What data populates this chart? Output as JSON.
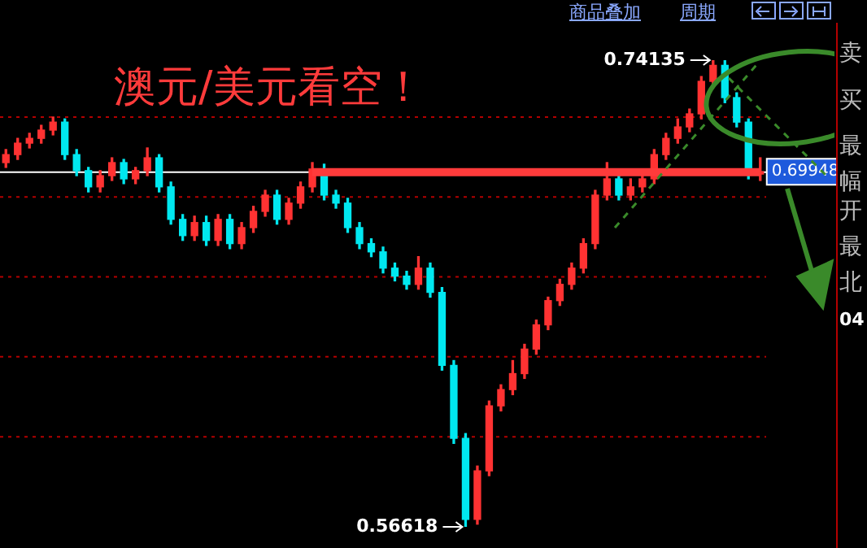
{
  "chart_data": {
    "type": "candlestick",
    "title": "澳元/美元看空！",
    "categories": [
      null,
      null,
      null,
      null,
      null,
      null,
      null,
      null,
      null,
      null,
      null,
      null,
      null,
      null,
      null,
      null,
      null,
      null,
      null,
      null,
      null,
      null,
      null,
      null,
      null,
      null,
      null,
      null,
      null,
      null,
      null,
      null,
      null,
      null,
      null,
      null,
      null,
      null,
      null,
      null,
      null,
      null,
      null,
      null,
      null,
      null,
      null,
      null,
      null,
      null,
      null,
      null,
      null,
      null,
      null,
      null,
      null,
      null,
      null,
      null,
      null,
      null,
      null,
      null,
      null
    ],
    "ohlc": [
      [
        0.7029,
        0.7078,
        0.7011,
        0.7059
      ],
      [
        0.7059,
        0.712,
        0.7041,
        0.7102
      ],
      [
        0.7102,
        0.7139,
        0.7084,
        0.712
      ],
      [
        0.712,
        0.7169,
        0.7102,
        0.7151
      ],
      [
        0.7151,
        0.72,
        0.7133,
        0.7181
      ],
      [
        0.7181,
        0.7193,
        0.7041,
        0.7059
      ],
      [
        0.7059,
        0.7078,
        0.698,
        0.6999
      ],
      [
        0.6999,
        0.7011,
        0.6919,
        0.6938
      ],
      [
        0.6938,
        0.6999,
        0.6919,
        0.698
      ],
      [
        0.698,
        0.7047,
        0.6962,
        0.7029
      ],
      [
        0.7029,
        0.7041,
        0.695,
        0.6968
      ],
      [
        0.6968,
        0.7011,
        0.695,
        0.6999
      ],
      [
        0.6999,
        0.7084,
        0.698,
        0.7047
      ],
      [
        0.7047,
        0.7059,
        0.6919,
        0.6938
      ],
      [
        0.6938,
        0.6956,
        0.6798,
        0.6816
      ],
      [
        0.6816,
        0.6834,
        0.6737,
        0.6755
      ],
      [
        0.6755,
        0.6828,
        0.6737,
        0.6804
      ],
      [
        0.6804,
        0.6828,
        0.6718,
        0.6737
      ],
      [
        0.6737,
        0.6834,
        0.6718,
        0.6816
      ],
      [
        0.6816,
        0.6834,
        0.6706,
        0.6725
      ],
      [
        0.6725,
        0.6804,
        0.6706,
        0.6785
      ],
      [
        0.6785,
        0.6865,
        0.6767,
        0.6846
      ],
      [
        0.6846,
        0.6925,
        0.6828,
        0.6907
      ],
      [
        0.6907,
        0.6925,
        0.6798,
        0.6816
      ],
      [
        0.6816,
        0.6895,
        0.6798,
        0.6877
      ],
      [
        0.6877,
        0.6956,
        0.6858,
        0.6938
      ],
      [
        0.6938,
        0.7029,
        0.6919,
        0.7005
      ],
      [
        0.7005,
        0.7023,
        0.6889,
        0.6907
      ],
      [
        0.6907,
        0.6925,
        0.6858,
        0.6877
      ],
      [
        0.6877,
        0.6895,
        0.6767,
        0.6785
      ],
      [
        0.6785,
        0.6804,
        0.6706,
        0.6725
      ],
      [
        0.6725,
        0.6743,
        0.6676,
        0.6694
      ],
      [
        0.6694,
        0.6712,
        0.6615,
        0.6633
      ],
      [
        0.6633,
        0.6652,
        0.6585,
        0.6603
      ],
      [
        0.6603,
        0.6621,
        0.6554,
        0.6572
      ],
      [
        0.6572,
        0.6676,
        0.6554,
        0.6633
      ],
      [
        0.6633,
        0.6652,
        0.6524,
        0.6542
      ],
      [
        0.6542,
        0.656,
        0.625,
        0.6268
      ],
      [
        0.6268,
        0.6286,
        0.5975,
        0.5994
      ],
      [
        0.5994,
        0.6012,
        0.56618,
        0.569
      ],
      [
        0.569,
        0.589,
        0.5672,
        0.5872
      ],
      [
        0.5872,
        0.6134,
        0.5854,
        0.6116
      ],
      [
        0.6116,
        0.6195,
        0.6097,
        0.6177
      ],
      [
        0.6177,
        0.6286,
        0.6158,
        0.6237
      ],
      [
        0.6237,
        0.6347,
        0.6219,
        0.6329
      ],
      [
        0.6329,
        0.6438,
        0.631,
        0.642
      ],
      [
        0.642,
        0.6524,
        0.6402,
        0.6511
      ],
      [
        0.6511,
        0.6591,
        0.6493,
        0.6572
      ],
      [
        0.6572,
        0.6652,
        0.6554,
        0.6633
      ],
      [
        0.6633,
        0.6743,
        0.6615,
        0.6725
      ],
      [
        0.6725,
        0.6925,
        0.6706,
        0.6907
      ],
      [
        0.6907,
        0.7029,
        0.6889,
        0.6968
      ],
      [
        0.6968,
        0.6986,
        0.6889,
        0.6907
      ],
      [
        0.6907,
        0.6968,
        0.6889,
        0.6938
      ],
      [
        0.6938,
        0.7005,
        0.6919,
        0.6968
      ],
      [
        0.6968,
        0.7078,
        0.695,
        0.7059
      ],
      [
        0.7059,
        0.7139,
        0.7041,
        0.712
      ],
      [
        0.712,
        0.7193,
        0.7102,
        0.7163
      ],
      [
        0.7163,
        0.723,
        0.7145,
        0.7212
      ],
      [
        0.7212,
        0.7352,
        0.7193,
        0.7334
      ],
      [
        0.7334,
        0.74135,
        0.7315,
        0.7394
      ],
      [
        0.7394,
        0.7413,
        0.7254,
        0.7273
      ],
      [
        0.7273,
        0.7291,
        0.7163,
        0.7181
      ],
      [
        0.7181,
        0.7193,
        0.6968,
        0.6986
      ],
      [
        0.6986,
        0.7047,
        0.6962,
        0.69948
      ]
    ],
    "series": [
      {
        "type": "line",
        "color": "#ff3b3b",
        "values": [
          null,
          null,
          null,
          null,
          null,
          null,
          null,
          null,
          null,
          null,
          null,
          null,
          null,
          null,
          null,
          null,
          null,
          null,
          null,
          null,
          null,
          null,
          null,
          null,
          null,
          null,
          0.6993,
          0.6993,
          0.6993,
          0.6993,
          0.6993,
          0.6993,
          0.6993,
          0.6993,
          0.6993,
          0.6993,
          0.6993,
          0.6993,
          0.6993,
          0.6993,
          0.6993,
          0.6993,
          0.6993,
          0.6993,
          0.6993,
          0.6993,
          0.6993,
          0.6993,
          0.6993,
          0.6993,
          0.6993,
          0.6993,
          0.6993,
          0.6993,
          0.6993,
          0.6993,
          0.6993,
          0.6993,
          0.6993,
          0.6993,
          0.6993,
          0.6993,
          0.6993,
          0.6993,
          0.6993
        ]
      }
    ],
    "ref_lines": [
      {
        "axis": "y",
        "value": 0.72,
        "color": "#b40000",
        "line_style": "dotted"
      },
      {
        "axis": "y",
        "value": 0.69,
        "color": "#b40000",
        "line_style": "dotted"
      },
      {
        "axis": "y",
        "value": 0.66,
        "color": "#b40000",
        "line_style": "dotted"
      },
      {
        "axis": "y",
        "value": 0.63,
        "color": "#b40000",
        "line_style": "dotted"
      },
      {
        "axis": "y",
        "value": 0.6,
        "color": "#b40000",
        "line_style": "dotted"
      },
      {
        "axis": "y",
        "value": 0.6993,
        "color": "#ffffff",
        "line_style": "solid"
      }
    ],
    "annotations": [
      "商品叠加",
      "周期",
      "卖",
      "买",
      "最",
      "幅",
      "开",
      "最",
      "北",
      "04",
      "0.74135",
      "0.56618",
      "0.69948"
    ],
    "legend": false
  }
}
